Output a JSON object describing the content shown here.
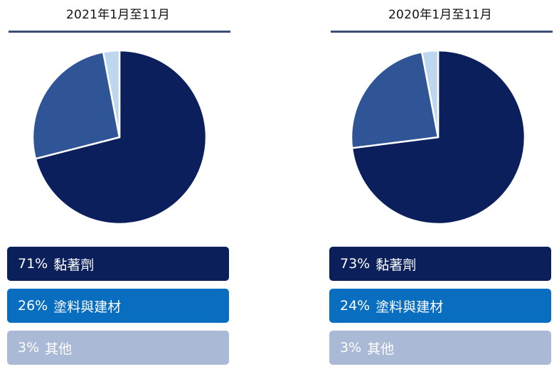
{
  "colors": {
    "slices": [
      "#0a1f5c",
      "#2f5597",
      "#bdd7ee"
    ],
    "legend": [
      "#0b1f5a",
      "#0a6ec0",
      "#aab9d6"
    ],
    "rule": "#3c4e78"
  },
  "chart_data": [
    {
      "type": "pie",
      "title": "2021年1月至11月",
      "categories": [
        "黏著劑",
        "塗料與建材",
        "其他"
      ],
      "values": [
        71,
        26,
        3
      ],
      "labels": [
        "71%",
        "26%",
        "3%"
      ]
    },
    {
      "type": "pie",
      "title": "2020年1月至11月",
      "categories": [
        "黏著劑",
        "塗料與建材",
        "其他"
      ],
      "values": [
        73,
        24,
        3
      ],
      "labels": [
        "73%",
        "24%",
        "3%"
      ]
    }
  ]
}
